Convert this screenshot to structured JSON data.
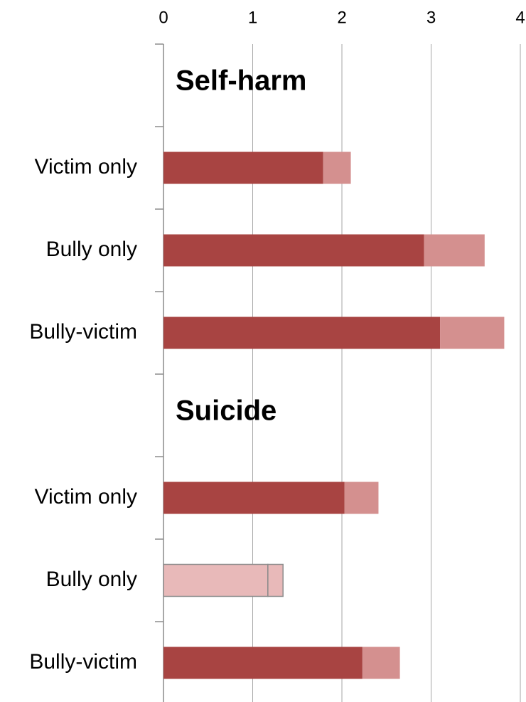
{
  "chart_data": {
    "type": "stacked-barh",
    "categories": [
      null,
      "Victim only",
      "Bully only",
      "Bully-victim",
      null,
      "Victim only",
      "Bully only",
      "Bully-victim"
    ],
    "annotations": [
      "Self-harm",
      "Suicide"
    ],
    "series": [
      {
        "values": [
          null,
          1.79,
          2.92,
          3.1,
          null,
          2.03,
          1.17,
          2.23
        ],
        "colors": [
          null,
          "#a84442",
          "#a84442",
          "#a84442",
          null,
          "#a84442",
          "#e8b9b9",
          "#a84442"
        ],
        "edgecolors": [
          null,
          null,
          null,
          null,
          null,
          null,
          "#8c8c8c",
          null
        ]
      },
      {
        "values": [
          null,
          0.31,
          0.68,
          0.72,
          null,
          0.38,
          0.17,
          0.42
        ],
        "colors": [
          null,
          "#d4908f",
          "#d4908f",
          "#d4908f",
          null,
          "#d4908f",
          "#e8b9b9",
          "#d4908f"
        ],
        "edgecolors": [
          null,
          null,
          null,
          null,
          null,
          null,
          "#8c8c8c",
          null
        ]
      }
    ],
    "xlim": [
      0,
      4
    ],
    "xticks": [
      0,
      1,
      2,
      3,
      4
    ],
    "grid": true
  }
}
